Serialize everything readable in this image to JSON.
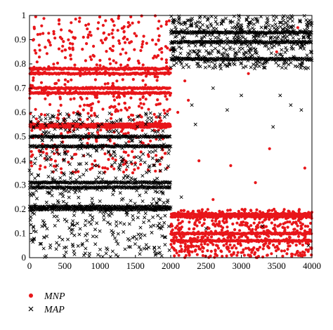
{
  "chart_data": {
    "type": "scatter",
    "title": "",
    "xlabel": "",
    "ylabel": "",
    "xlim": [
      0,
      4000
    ],
    "ylim": [
      0,
      1
    ],
    "x_ticks": [
      "0",
      "500",
      "1000",
      "1500",
      "2000",
      "2500",
      "3000",
      "3500",
      "4000"
    ],
    "y_ticks": [
      "0",
      "0.1",
      "0.2",
      "0.3",
      "0.4",
      "0.5",
      "0.6",
      "0.7",
      "0.8",
      "0.9",
      "1"
    ],
    "grid": false,
    "legend_position": "bottom-left",
    "series": [
      {
        "name": "MNP",
        "marker": "filled circle",
        "color": "#e8161a",
        "description_points": [
          {
            "x_range": [
              0,
              2000
            ],
            "dense_bands_y": [
              0.68,
              0.7,
              0.76,
              0.78,
              0.54,
              0.55
            ],
            "scatter_y_range": [
              0.35,
              1.0
            ]
          },
          {
            "x_range": [
              2000,
              4000
            ],
            "dense_bands_y": [
              0.18,
              0.17,
              0.1,
              0.07
            ],
            "scatter_y_range": [
              0.0,
              0.2
            ]
          }
        ],
        "outliers": [
          {
            "x": 2100,
            "y": 0.6
          },
          {
            "x": 2200,
            "y": 0.73
          },
          {
            "x": 2250,
            "y": 0.65
          },
          {
            "x": 2400,
            "y": 0.4
          },
          {
            "x": 2600,
            "y": 0.24
          },
          {
            "x": 2850,
            "y": 0.38
          },
          {
            "x": 3100,
            "y": 0.76
          },
          {
            "x": 3200,
            "y": 0.31
          },
          {
            "x": 3400,
            "y": 0.45
          },
          {
            "x": 3500,
            "y": 0.85
          },
          {
            "x": 3800,
            "y": 0.95
          },
          {
            "x": 3900,
            "y": 0.37
          }
        ]
      },
      {
        "name": "MAP",
        "marker": "x",
        "color": "#000000",
        "description_points": [
          {
            "x_range": [
              0,
              2000
            ],
            "dense_bands_y": [
              0.5,
              0.46,
              0.31,
              0.29,
              0.21,
              0.2
            ],
            "scatter_y_range": [
              0.0,
              0.6
            ]
          },
          {
            "x_range": [
              2000,
              4000
            ],
            "dense_bands_y": [
              0.93,
              0.89,
              0.82
            ],
            "scatter_y_range": [
              0.78,
              1.0
            ]
          }
        ],
        "outliers": [
          {
            "x": 2150,
            "y": 0.25
          },
          {
            "x": 2300,
            "y": 0.63
          },
          {
            "x": 2350,
            "y": 0.55
          },
          {
            "x": 2500,
            "y": 0.12
          },
          {
            "x": 2600,
            "y": 0.7
          },
          {
            "x": 2800,
            "y": 0.61
          },
          {
            "x": 3000,
            "y": 0.67
          },
          {
            "x": 3300,
            "y": 0.13
          },
          {
            "x": 3450,
            "y": 0.54
          },
          {
            "x": 3550,
            "y": 0.67
          },
          {
            "x": 3700,
            "y": 0.63
          },
          {
            "x": 3850,
            "y": 0.61
          },
          {
            "x": 3950,
            "y": 0.05
          }
        ]
      }
    ]
  },
  "legend": {
    "mnp_label": "MNP",
    "map_label": "MAP",
    "mnp_color": "#e8161a",
    "map_color": "#000000"
  }
}
